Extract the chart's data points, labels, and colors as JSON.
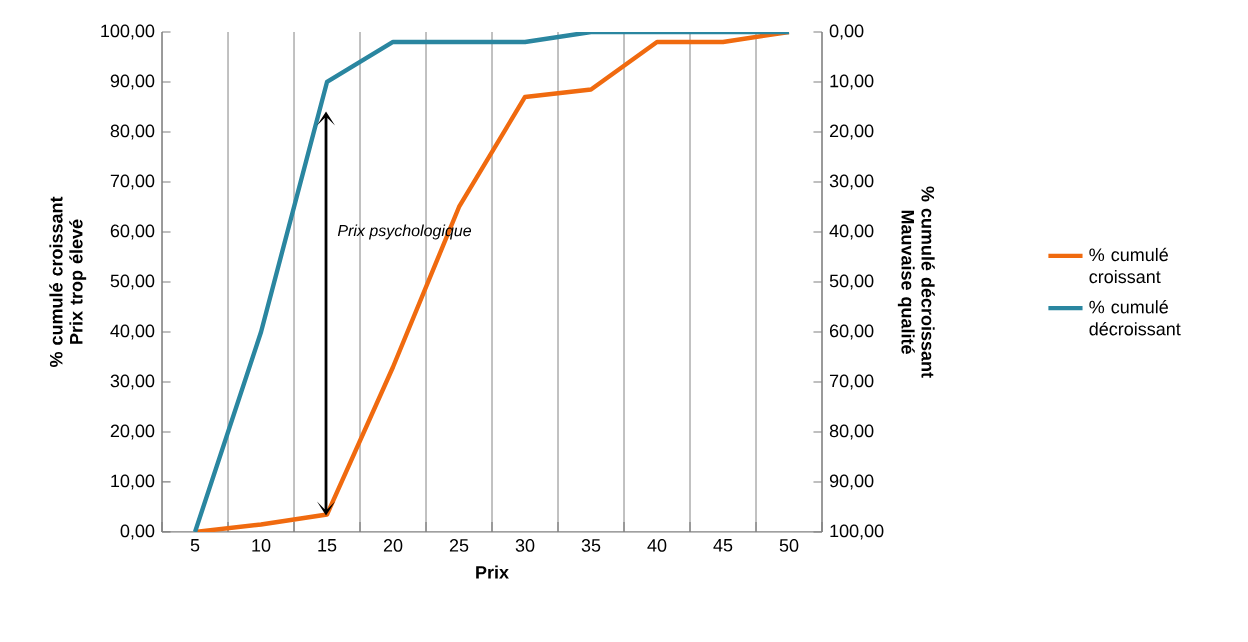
{
  "chart_data": {
    "type": "line",
    "categories": [
      "5",
      "10",
      "15",
      "20",
      "25",
      "30",
      "35",
      "40",
      "45",
      "50"
    ],
    "series": [
      {
        "name": "% cumulé croissant",
        "color": "#f06a0f",
        "values": [
          0,
          1.5,
          3.5,
          33,
          65,
          87,
          88.5,
          98,
          98,
          100
        ]
      },
      {
        "name": "% cumulé décroissant",
        "color": "#2a86a0",
        "axis": "y2",
        "values": [
          100,
          60,
          10,
          2,
          2,
          2,
          0,
          0,
          0,
          0
        ]
      }
    ],
    "xlabel": "Prix",
    "ylabel": "% cumulé croissant Prix trop élevé",
    "y2label": "% cumulé décroissant Mauvaise qualité",
    "ylim": [
      0,
      100
    ],
    "yticks": [
      {
        "value": 0,
        "label": "0,00"
      },
      {
        "value": 10,
        "label": "10,00"
      },
      {
        "value": 20,
        "label": "20,00"
      },
      {
        "value": 30,
        "label": "30,00"
      },
      {
        "value": 40,
        "label": "40,00"
      },
      {
        "value": 50,
        "label": "50,00"
      },
      {
        "value": 60,
        "label": "60,00"
      },
      {
        "value": 70,
        "label": "70,00"
      },
      {
        "value": 80,
        "label": "80,00"
      },
      {
        "value": 90,
        "label": "90,00"
      },
      {
        "value": 100,
        "label": "100,00"
      }
    ],
    "y2lim": [
      100,
      0
    ],
    "y2ticks": [
      {
        "value": 0,
        "label": "0,00"
      },
      {
        "value": 10,
        "label": "10,00"
      },
      {
        "value": 20,
        "label": "20,00"
      },
      {
        "value": 30,
        "label": "30,00"
      },
      {
        "value": 40,
        "label": "40,00"
      },
      {
        "value": 50,
        "label": "50,00"
      },
      {
        "value": 60,
        "label": "60,00"
      },
      {
        "value": 70,
        "label": "70,00"
      },
      {
        "value": 80,
        "label": "80,00"
      },
      {
        "value": 90,
        "label": "90,00"
      },
      {
        "value": 100,
        "label": "100,00"
      }
    ],
    "annotations": [
      "Prix psychologique"
    ],
    "grid": "x",
    "legend": "right",
    "marker": "none",
    "line_style": "solid"
  }
}
